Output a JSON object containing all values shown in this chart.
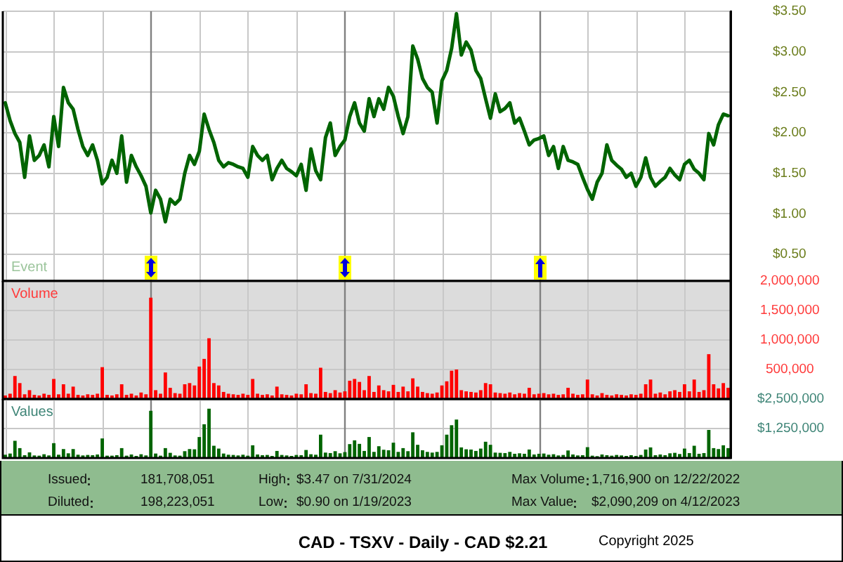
{
  "chart_data": [
    {
      "type": "line",
      "color": "#006400",
      "categories": [
        null,
        null,
        null,
        null,
        null,
        null,
        null,
        null,
        null,
        null,
        null,
        null,
        null,
        null,
        null,
        null,
        null,
        null,
        null,
        null,
        null,
        null,
        null,
        null,
        null,
        null,
        null,
        null,
        null,
        null,
        null,
        null,
        null,
        null,
        null,
        null,
        null,
        null,
        null,
        null,
        null,
        null,
        null,
        null,
        null,
        null,
        null,
        null,
        null,
        null,
        null,
        null,
        null,
        null,
        null,
        null,
        null,
        null,
        null,
        null,
        null,
        null,
        null,
        null,
        null,
        null,
        null,
        null,
        null,
        null,
        null,
        null,
        null,
        null,
        null,
        null,
        null,
        null,
        null,
        null,
        null,
        null,
        null,
        null,
        null,
        null,
        null,
        null,
        null,
        null,
        null,
        null,
        null,
        null,
        null,
        null,
        null,
        null,
        null,
        null,
        null,
        null,
        null,
        null,
        null,
        null,
        null,
        null,
        null,
        null,
        null,
        null,
        null,
        null,
        null,
        null,
        null,
        null,
        null,
        null,
        null,
        null,
        null,
        null,
        null,
        null,
        null,
        null,
        null,
        null,
        null,
        null,
        null,
        null,
        null,
        null,
        null,
        null,
        null,
        null,
        null,
        null,
        null,
        null,
        null,
        null,
        null,
        null,
        null,
        null
      ],
      "values": [
        2.37,
        2.15,
        1.99,
        1.88,
        1.45,
        1.96,
        1.66,
        1.72,
        1.85,
        1.58,
        2.2,
        1.83,
        2.56,
        2.37,
        2.29,
        2.04,
        1.83,
        1.72,
        1.85,
        1.66,
        1.37,
        1.45,
        1.66,
        1.5,
        1.96,
        1.39,
        1.72,
        1.58,
        1.47,
        1.34,
        1.01,
        1.29,
        1.18,
        0.9,
        1.18,
        1.12,
        1.18,
        1.5,
        1.72,
        1.61,
        1.77,
        2.23,
        2.04,
        1.88,
        1.66,
        1.58,
        1.63,
        1.61,
        1.58,
        1.56,
        1.45,
        1.83,
        1.72,
        1.66,
        1.72,
        1.42,
        1.56,
        1.66,
        1.56,
        1.52,
        1.47,
        1.61,
        1.29,
        1.8,
        1.53,
        1.42,
        1.94,
        2.12,
        1.72,
        1.83,
        1.91,
        2.2,
        2.37,
        2.12,
        2.02,
        2.42,
        2.2,
        2.42,
        2.29,
        2.56,
        2.45,
        2.2,
        1.99,
        2.2,
        3.07,
        2.91,
        2.67,
        2.56,
        2.5,
        2.12,
        2.64,
        2.77,
        3.04,
        3.47,
        2.96,
        3.12,
        3.02,
        2.77,
        2.67,
        2.42,
        2.18,
        2.48,
        2.26,
        2.3,
        2.37,
        2.12,
        2.18,
        2.02,
        1.85,
        1.91,
        1.93,
        1.96,
        1.72,
        1.83,
        1.56,
        1.83,
        1.66,
        1.64,
        1.61,
        1.45,
        1.3,
        1.18,
        1.39,
        1.5,
        1.85,
        1.66,
        1.6,
        1.55,
        1.45,
        1.5,
        1.34,
        1.45,
        1.69,
        1.45,
        1.34,
        1.4,
        1.45,
        1.56,
        1.48,
        1.42,
        1.61,
        1.66,
        1.55,
        1.5,
        1.42,
        1.99,
        1.85,
        2.1,
        2.23,
        2.21
      ],
      "ylim": [
        0.17,
        3.5
      ],
      "yticks": [
        {
          "value": 0.5,
          "label": "$0.50"
        },
        {
          "value": 1,
          "label": "$1.00"
        },
        {
          "value": 1.5,
          "label": "$1.50"
        },
        {
          "value": 2,
          "label": "$2.00"
        },
        {
          "value": 2.5,
          "label": "$2.50"
        },
        {
          "value": 3,
          "label": "$3.00"
        },
        {
          "value": 3.5,
          "label": "$3.50"
        }
      ],
      "grid": true,
      "tick_labels": "y",
      "annotations": [
        "Event"
      ]
    },
    {
      "type": "bar",
      "title": "Volume",
      "color": "#ff0000",
      "categories": [
        null,
        null,
        null,
        null,
        null,
        null,
        null,
        null,
        null,
        null,
        null,
        null,
        null,
        null,
        null,
        null,
        null,
        null,
        null,
        null,
        null,
        null,
        null,
        null,
        null,
        null,
        null,
        null,
        null,
        null,
        null,
        null,
        null,
        null,
        null,
        null,
        null,
        null,
        null,
        null,
        null,
        null,
        null,
        null,
        null,
        null,
        null,
        null,
        null,
        null,
        null,
        null,
        null,
        null,
        null,
        null,
        null,
        null,
        null,
        null,
        null,
        null,
        null,
        null,
        null,
        null,
        null,
        null,
        null,
        null,
        null,
        null,
        null,
        null,
        null,
        null,
        null,
        null,
        null,
        null,
        null,
        null,
        null,
        null,
        null,
        null,
        null,
        null,
        null,
        null,
        null,
        null,
        null,
        null,
        null,
        null,
        null,
        null,
        null,
        null,
        null,
        null,
        null,
        null,
        null,
        null,
        null,
        null,
        null,
        null,
        null,
        null,
        null,
        null,
        null,
        null,
        null,
        null,
        null,
        null,
        null,
        null,
        null,
        null,
        null,
        null,
        null,
        null,
        null,
        null,
        null,
        null,
        null,
        null,
        null,
        null,
        null,
        null,
        null,
        null,
        null,
        null,
        null,
        null,
        null,
        null,
        null,
        null,
        null,
        null
      ],
      "values": [
        60000,
        90000,
        390000,
        270000,
        80000,
        150000,
        70000,
        60000,
        90000,
        70000,
        340000,
        80000,
        250000,
        90000,
        210000,
        70000,
        60000,
        80000,
        70000,
        90000,
        540000,
        70000,
        60000,
        80000,
        250000,
        70000,
        90000,
        60000,
        110000,
        80000,
        1716900,
        150000,
        90000,
        450000,
        190000,
        100000,
        90000,
        250000,
        270000,
        230000,
        550000,
        680000,
        1030000,
        270000,
        230000,
        120000,
        90000,
        80000,
        70000,
        90000,
        70000,
        340000,
        90000,
        70000,
        80000,
        60000,
        210000,
        80000,
        70000,
        60000,
        90000,
        80000,
        250000,
        100000,
        90000,
        530000,
        120000,
        100000,
        150000,
        110000,
        130000,
        310000,
        340000,
        290000,
        150000,
        390000,
        120000,
        230000,
        150000,
        130000,
        240000,
        120000,
        210000,
        130000,
        350000,
        210000,
        120000,
        100000,
        90000,
        110000,
        230000,
        300000,
        480000,
        500000,
        150000,
        130000,
        120000,
        110000,
        150000,
        270000,
        250000,
        110000,
        100000,
        90000,
        110000,
        80000,
        100000,
        90000,
        190000,
        80000,
        90000,
        100000,
        80000,
        90000,
        70000,
        80000,
        190000,
        90000,
        70000,
        80000,
        330000,
        80000,
        60000,
        100000,
        70000,
        60000,
        80000,
        70000,
        60000,
        80000,
        70000,
        90000,
        250000,
        330000,
        90000,
        110000,
        80000,
        130000,
        150000,
        120000,
        250000,
        130000,
        330000,
        120000,
        150000,
        760000,
        250000,
        180000,
        270000,
        190000
      ],
      "ylim": [
        0,
        2000000
      ],
      "yticks": [
        {
          "value": 500000,
          "label": "500,000"
        },
        {
          "value": 1000000,
          "label": "1,000,000"
        },
        {
          "value": 1500000,
          "label": "1,500,000"
        },
        {
          "value": 2000000,
          "label": "2,000,000"
        }
      ],
      "grid": true,
      "tick_labels": "y"
    },
    {
      "type": "bar",
      "title": "Values",
      "color": "#006400",
      "categories": [
        null,
        null,
        null,
        null,
        null,
        null,
        null,
        null,
        null,
        null,
        null,
        null,
        null,
        null,
        null,
        null,
        null,
        null,
        null,
        null,
        null,
        null,
        null,
        null,
        null,
        null,
        null,
        null,
        null,
        null,
        null,
        null,
        null,
        null,
        null,
        null,
        null,
        null,
        null,
        null,
        null,
        null,
        null,
        null,
        null,
        null,
        null,
        null,
        null,
        null,
        null,
        null,
        null,
        null,
        null,
        null,
        null,
        null,
        null,
        null,
        null,
        null,
        null,
        null,
        null,
        null,
        null,
        null,
        null,
        null,
        null,
        null,
        null,
        null,
        null,
        null,
        null,
        null,
        null,
        null,
        null,
        null,
        null,
        null,
        null,
        null,
        null,
        null,
        null,
        null,
        null,
        null,
        null,
        null,
        null,
        null,
        null,
        null,
        null,
        null,
        null,
        null,
        null,
        null,
        null,
        null,
        null,
        null,
        null,
        null,
        null,
        null,
        null,
        null,
        null,
        null,
        null,
        null,
        null,
        null,
        null,
        null,
        null,
        null,
        null,
        null,
        null,
        null,
        null,
        null,
        null,
        null,
        null,
        null,
        null,
        null,
        null,
        null,
        null,
        null,
        null,
        null,
        null,
        null,
        null,
        null,
        null,
        null,
        null,
        null
      ],
      "values": [
        140000,
        190000,
        730000,
        420000,
        120000,
        240000,
        110000,
        100000,
        160000,
        110000,
        630000,
        140000,
        380000,
        200000,
        380000,
        140000,
        110000,
        130000,
        120000,
        150000,
        830000,
        100000,
        100000,
        120000,
        420000,
        100000,
        150000,
        90000,
        160000,
        110000,
        2000000,
        190000,
        100000,
        420000,
        220000,
        110000,
        100000,
        290000,
        380000,
        370000,
        890000,
        1430000,
        2090209,
        520000,
        400000,
        190000,
        140000,
        130000,
        110000,
        140000,
        100000,
        540000,
        150000,
        120000,
        130000,
        90000,
        300000,
        130000,
        110000,
        90000,
        130000,
        120000,
        340000,
        160000,
        140000,
        990000,
        230000,
        210000,
        290000,
        200000,
        250000,
        590000,
        750000,
        600000,
        300000,
        890000,
        260000,
        500000,
        350000,
        330000,
        650000,
        260000,
        420000,
        290000,
        1090000,
        560000,
        330000,
        260000,
        230000,
        260000,
        540000,
        990000,
        1390000,
        1630000,
        450000,
        370000,
        360000,
        300000,
        400000,
        690000,
        560000,
        230000,
        220000,
        210000,
        260000,
        180000,
        200000,
        180000,
        360000,
        150000,
        180000,
        190000,
        140000,
        160000,
        110000,
        130000,
        320000,
        150000,
        110000,
        120000,
        460000,
        100000,
        80000,
        150000,
        120000,
        100000,
        130000,
        110000,
        90000,
        120000,
        90000,
        130000,
        360000,
        450000,
        120000,
        150000,
        120000,
        200000,
        220000,
        170000,
        400000,
        210000,
        520000,
        180000,
        210000,
        1190000,
        420000,
        380000,
        540000,
        420000
      ],
      "ylim": [
        0,
        2500000
      ],
      "yticks": [
        {
          "value": 1250000,
          "label": "$1,250,000"
        },
        {
          "value": 2500000,
          "label": "$2,500,000"
        }
      ],
      "grid": true,
      "tick_labels": "y"
    },
    {
      "type": "other",
      "title": "CAD - TSXV - Daily - CAD $2.21",
      "categories": [
        "Issued",
        "Diluted",
        "High",
        "Low",
        "Max Volume",
        "Max Value"
      ],
      "value_labels": [
        "181,708,051",
        "198,223,051",
        "$3.47 on 7/31/2024",
        "$0.90 on 1/19/2023",
        "1,716,900 on 12/22/2022",
        "$2,090,209 on 4/12/2023"
      ],
      "annotations": [
        "Copyright 2025"
      ]
    }
  ]
}
